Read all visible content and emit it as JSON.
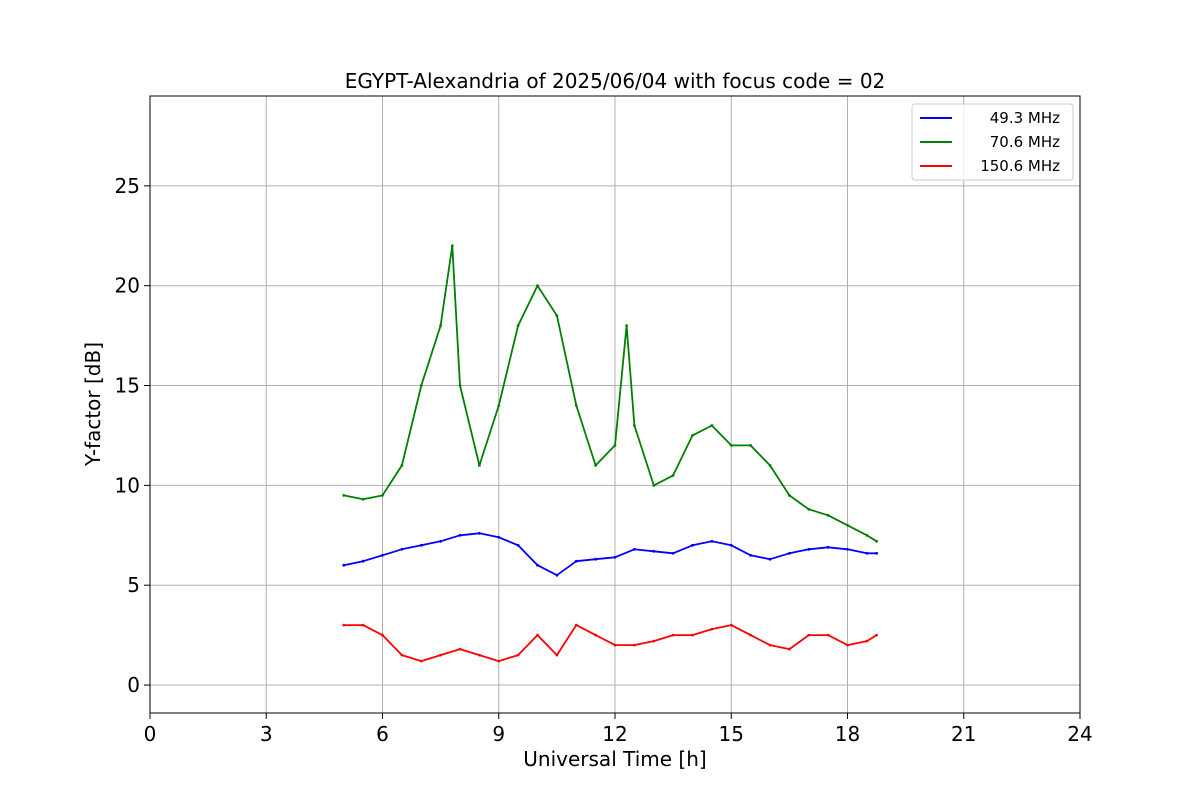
{
  "chart_data": {
    "type": "line",
    "title": "EGYPT-Alexandria of 2025/06/04 with focus code = 02",
    "xlabel": "Universal Time [h]",
    "ylabel": "Y-factor [dB]",
    "xlim": [
      0,
      24
    ],
    "ylim": [
      -1.4,
      29.5
    ],
    "xticks": [
      0,
      3,
      6,
      9,
      12,
      15,
      18,
      21,
      24
    ],
    "yticks": [
      0,
      5,
      10,
      15,
      20,
      25
    ],
    "grid": true,
    "legend_position": "top-right",
    "series": [
      {
        "name": "49.3 MHz",
        "color": "#0000ff",
        "x": [
          5.0,
          5.5,
          6.0,
          6.5,
          7.0,
          7.5,
          8.0,
          8.5,
          9.0,
          9.5,
          10.0,
          10.5,
          11.0,
          11.5,
          12.0,
          12.5,
          13.0,
          13.5,
          14.0,
          14.5,
          15.0,
          15.5,
          16.0,
          16.5,
          17.0,
          17.5,
          18.0,
          18.5,
          18.75
        ],
        "y": [
          6.0,
          6.2,
          6.5,
          6.8,
          7.0,
          7.2,
          7.5,
          7.6,
          7.4,
          7.0,
          6.0,
          5.5,
          6.2,
          6.3,
          6.4,
          6.8,
          6.7,
          6.6,
          7.0,
          7.2,
          7.0,
          6.5,
          6.3,
          6.6,
          6.8,
          6.9,
          6.8,
          6.6,
          6.6
        ]
      },
      {
        "name": "70.6 MHz",
        "color": "#008000",
        "x": [
          5.0,
          5.5,
          6.0,
          6.5,
          7.0,
          7.5,
          7.8,
          8.0,
          8.5,
          9.0,
          9.5,
          10.0,
          10.5,
          11.0,
          11.5,
          12.0,
          12.3,
          12.5,
          13.0,
          13.5,
          14.0,
          14.5,
          15.0,
          15.5,
          16.0,
          16.5,
          17.0,
          17.5,
          18.0,
          18.5,
          18.75
        ],
        "y": [
          9.5,
          9.3,
          9.5,
          11.0,
          15.0,
          18.0,
          22.0,
          15.0,
          11.0,
          14.0,
          18.0,
          20.0,
          18.5,
          14.0,
          11.0,
          12.0,
          18.0,
          13.0,
          10.0,
          10.5,
          12.5,
          13.0,
          12.0,
          12.0,
          11.0,
          9.5,
          8.8,
          8.5,
          8.0,
          7.5,
          7.2
        ]
      },
      {
        "name": "150.6 MHz",
        "color": "#ff0000",
        "x": [
          5.0,
          5.5,
          6.0,
          6.5,
          7.0,
          7.5,
          8.0,
          8.5,
          9.0,
          9.5,
          10.0,
          10.5,
          11.0,
          11.5,
          12.0,
          12.5,
          13.0,
          13.5,
          14.0,
          14.5,
          15.0,
          15.5,
          16.0,
          16.5,
          17.0,
          17.5,
          18.0,
          18.5,
          18.75
        ],
        "y": [
          3.0,
          3.0,
          2.5,
          1.5,
          1.2,
          1.5,
          1.8,
          1.5,
          1.2,
          1.5,
          2.5,
          1.5,
          3.0,
          2.5,
          2.0,
          2.0,
          2.2,
          2.5,
          2.5,
          2.8,
          3.0,
          2.5,
          2.0,
          1.8,
          2.5,
          2.5,
          2.0,
          2.2,
          2.5
        ]
      }
    ]
  }
}
